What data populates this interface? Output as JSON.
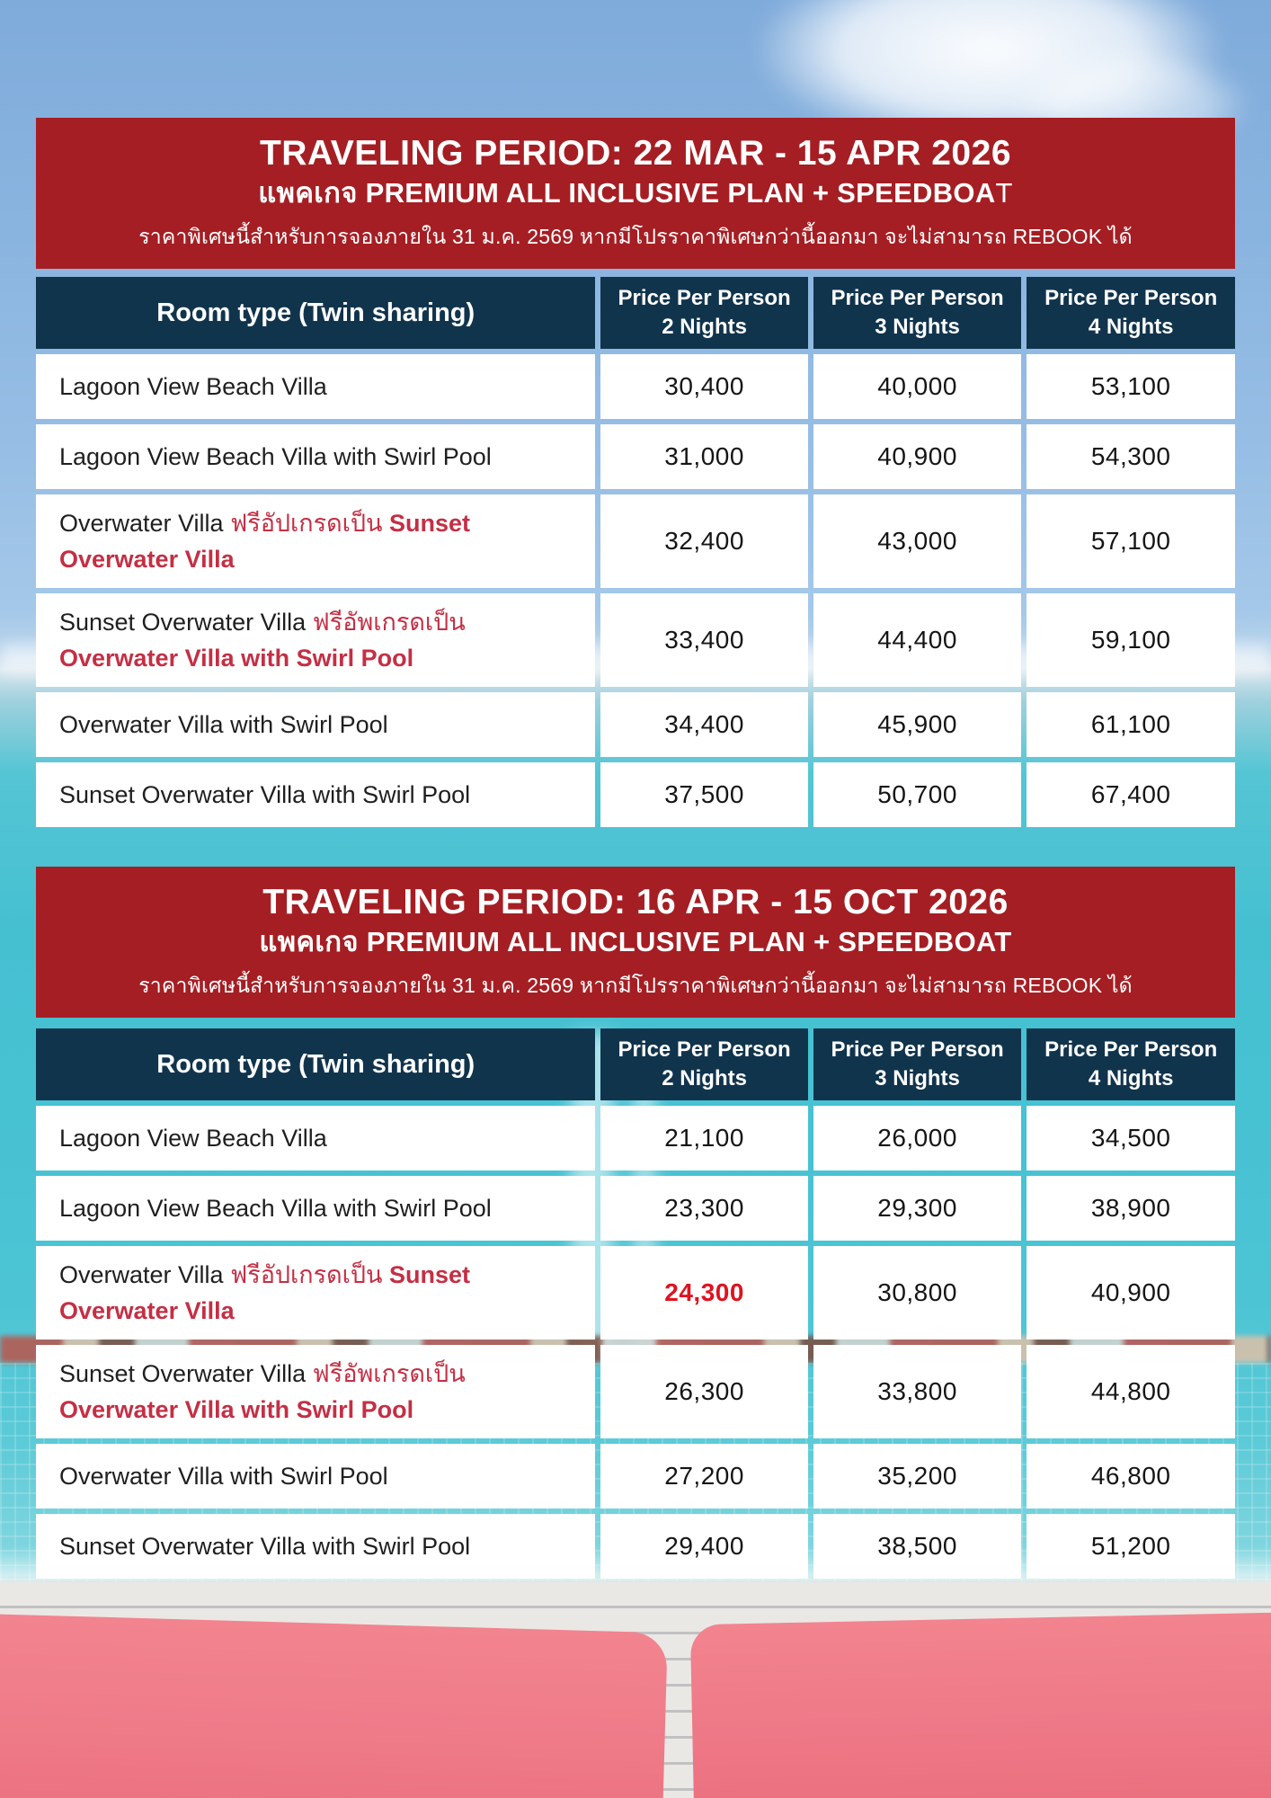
{
  "colors": {
    "banner_red": "#a51e23",
    "header_navy": "#11344d",
    "upgrade_red": "#c42f44",
    "highlight_red": "#e0121f",
    "cushion_pink": "#f0818e",
    "sea_turquoise": "#47c2d3"
  },
  "sections": [
    {
      "banner": {
        "title": "TRAVELING PERIOD: 22 MAR - 15 APR 2026",
        "subtitle_bold": "แพคเกจ PREMIUM ALL INCLUSIVE PLAN + SPEEDBOA",
        "subtitle_tail": "T",
        "note": "ราคาพิเศษนี้สำหรับการจองภายใน 31 ม.ค. 2569 หากมีโปรราคาพิเศษกว่านี้ออกมา จะไม่สามารถ REBOOK ได้"
      },
      "table": {
        "room_header": "Room type (Twin sharing)",
        "price_headers": [
          {
            "line1": "Price Per Person",
            "line2": "2 Nights"
          },
          {
            "line1": "Price Per Person",
            "line2": "3 Nights"
          },
          {
            "line1": "Price Per Person",
            "line2": "4 Nights"
          }
        ],
        "rows": [
          {
            "tall": false,
            "highlight": -1,
            "name_parts": [
              {
                "text": "Lagoon View Beach Villa",
                "style": "black"
              }
            ],
            "prices": [
              "30,400",
              "40,000",
              "53,100"
            ]
          },
          {
            "tall": false,
            "highlight": -1,
            "name_parts": [
              {
                "text": "Lagoon View Beach Villa with Swirl Pool",
                "style": "black"
              }
            ],
            "prices": [
              "31,000",
              "40,900",
              "54,300"
            ]
          },
          {
            "tall": true,
            "highlight": -1,
            "name_parts": [
              {
                "text": "Overwater Villa ",
                "style": "black"
              },
              {
                "text": "ฟรีอัปเกรดเป็น ",
                "style": "red"
              },
              {
                "text": "Sunset Overwater Villa",
                "style": "redbold"
              }
            ],
            "prices": [
              "32,400",
              "43,000",
              "57,100"
            ]
          },
          {
            "tall": true,
            "highlight": -1,
            "name_parts": [
              {
                "text": "Sunset Overwater Villa ",
                "style": "black"
              },
              {
                "text": "ฟรีอัพเกรดเป็น ",
                "style": "red"
              },
              {
                "text": "Overwater Villa with Swirl Pool",
                "style": "redbold"
              }
            ],
            "prices": [
              "33,400",
              "44,400",
              "59,100"
            ]
          },
          {
            "tall": false,
            "highlight": -1,
            "name_parts": [
              {
                "text": "Overwater Villa with Swirl Pool",
                "style": "black"
              }
            ],
            "prices": [
              "34,400",
              "45,900",
              "61,100"
            ]
          },
          {
            "tall": false,
            "highlight": -1,
            "name_parts": [
              {
                "text": "Sunset Overwater Villa with Swirl Pool",
                "style": "black"
              }
            ],
            "prices": [
              "37,500",
              "50,700",
              "67,400"
            ]
          }
        ]
      }
    },
    {
      "banner": {
        "title": "TRAVELING PERIOD: 16 APR - 15 OCT 2026",
        "subtitle_bold": "แพคเกจ PREMIUM ALL INCLUSIVE PLAN + SPEEDBOAT",
        "subtitle_tail": "",
        "note": "ราคาพิเศษนี้สำหรับการจองภายใน 31 ม.ค. 2569 หากมีโปรราคาพิเศษกว่านี้ออกมา จะไม่สามารถ REBOOK ได้"
      },
      "table": {
        "room_header": "Room type (Twin sharing)",
        "price_headers": [
          {
            "line1": "Price Per Person",
            "line2": "2 Nights"
          },
          {
            "line1": "Price Per Person",
            "line2": "3 Nights"
          },
          {
            "line1": "Price Per Person",
            "line2": "4 Nights"
          }
        ],
        "rows": [
          {
            "tall": false,
            "highlight": -1,
            "name_parts": [
              {
                "text": "Lagoon View Beach Villa",
                "style": "black"
              }
            ],
            "prices": [
              "21,100",
              "26,000",
              "34,500"
            ]
          },
          {
            "tall": false,
            "highlight": -1,
            "name_parts": [
              {
                "text": "Lagoon View Beach Villa with Swirl Pool",
                "style": "black"
              }
            ],
            "prices": [
              "23,300",
              "29,300",
              "38,900"
            ]
          },
          {
            "tall": true,
            "highlight": 0,
            "name_parts": [
              {
                "text": "Overwater Villa ",
                "style": "black"
              },
              {
                "text": "ฟรีอัปเกรดเป็น ",
                "style": "red"
              },
              {
                "text": "Sunset Overwater Villa",
                "style": "redbold"
              }
            ],
            "prices": [
              "24,300",
              "30,800",
              "40,900"
            ]
          },
          {
            "tall": true,
            "highlight": -1,
            "name_parts": [
              {
                "text": "Sunset Overwater Villa ",
                "style": "black"
              },
              {
                "text": "ฟรีอัพเกรดเป็น ",
                "style": "red"
              },
              {
                "text": "Overwater Villa with Swirl Pool",
                "style": "redbold"
              }
            ],
            "prices": [
              "26,300",
              "33,800",
              "44,800"
            ]
          },
          {
            "tall": false,
            "highlight": -1,
            "name_parts": [
              {
                "text": "Overwater Villa with Swirl Pool",
                "style": "black"
              }
            ],
            "prices": [
              "27,200",
              "35,200",
              "46,800"
            ]
          },
          {
            "tall": false,
            "highlight": -1,
            "name_parts": [
              {
                "text": "Sunset Overwater Villa with Swirl Pool",
                "style": "black"
              }
            ],
            "prices": [
              "29,400",
              "38,500",
              "51,200"
            ]
          }
        ]
      }
    }
  ]
}
